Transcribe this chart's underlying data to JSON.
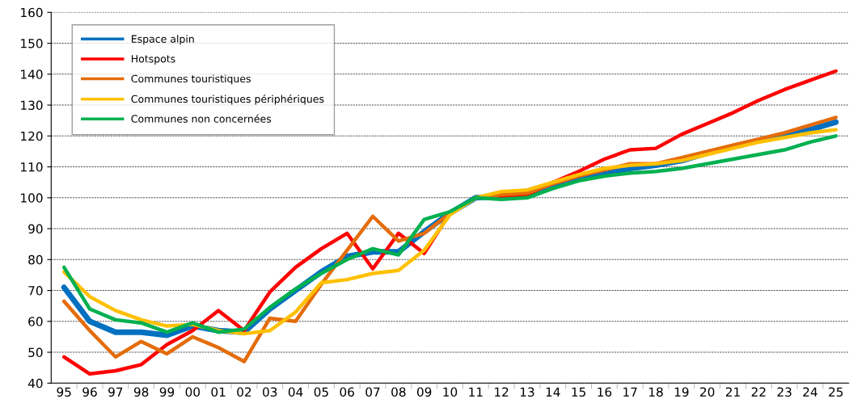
{
  "chart_data": {
    "type": "line",
    "categories": [
      "95",
      "96",
      "97",
      "98",
      "99",
      "00",
      "01",
      "02",
      "03",
      "04",
      "05",
      "06",
      "07",
      "08",
      "09",
      "10",
      "11",
      "12",
      "13",
      "14",
      "15",
      "16",
      "17",
      "18",
      "19",
      "20",
      "21",
      "22",
      "23",
      "24",
      "25"
    ],
    "series": [
      {
        "name": "Espace alpin",
        "color": "#0070c0",
        "values": [
          71,
          60,
          56.5,
          56.5,
          55.5,
          58.5,
          57,
          56.5,
          64,
          70,
          76,
          81,
          82.5,
          82.5,
          89,
          95,
          100,
          100.5,
          101,
          104,
          106,
          108,
          109.5,
          110.5,
          112,
          114.5,
          116.5,
          118.5,
          120,
          122,
          124.5
        ]
      },
      {
        "name": "Hotspots",
        "color": "#ff0000",
        "values": [
          48.5,
          43,
          44,
          46,
          52.5,
          57,
          63.5,
          57,
          69.5,
          77.5,
          83.5,
          88.5,
          77,
          88.5,
          82,
          95,
          100,
          100.5,
          101,
          105,
          108.5,
          112.5,
          115.5,
          116,
          120.5,
          124,
          127.5,
          131.5,
          135,
          138,
          141
        ]
      },
      {
        "name": "Communes touristiques",
        "color": "#e46c0a",
        "values": [
          66.5,
          57,
          48.5,
          53.5,
          49.5,
          55,
          51.5,
          47,
          61,
          60,
          72,
          83,
          94,
          86,
          88.5,
          95,
          100,
          101,
          101.5,
          104.5,
          107,
          109,
          111,
          111,
          113,
          115,
          117,
          119,
          121,
          123.5,
          126
        ]
      },
      {
        "name": "Communes touristiques périphériques",
        "color": "#ffc000",
        "values": [
          76,
          68,
          63.5,
          60.5,
          58.5,
          59,
          57,
          56,
          57,
          63,
          72.5,
          73.5,
          75.5,
          76.5,
          83,
          94.5,
          100,
          102,
          102.5,
          105,
          107.5,
          109.5,
          110.5,
          111,
          112,
          114,
          116,
          118,
          119.5,
          121,
          122
        ]
      },
      {
        "name": "Communes non concernées",
        "color": "#00b050",
        "values": [
          77.5,
          64,
          60.5,
          59.5,
          56.5,
          59.5,
          56.5,
          57.5,
          64.5,
          70.5,
          75.5,
          80,
          83.5,
          81.5,
          93,
          95.5,
          100,
          99.5,
          100,
          103,
          105.5,
          107,
          108,
          108.5,
          109.5,
          111,
          112.5,
          114,
          115.5,
          118,
          120
        ]
      }
    ],
    "ylim": [
      40,
      160
    ],
    "yticks": [
      40,
      50,
      60,
      70,
      80,
      90,
      100,
      110,
      120,
      130,
      140,
      150,
      160
    ],
    "grid": "y",
    "legend": "top left",
    "marker": "none",
    "line_style": "solid"
  }
}
